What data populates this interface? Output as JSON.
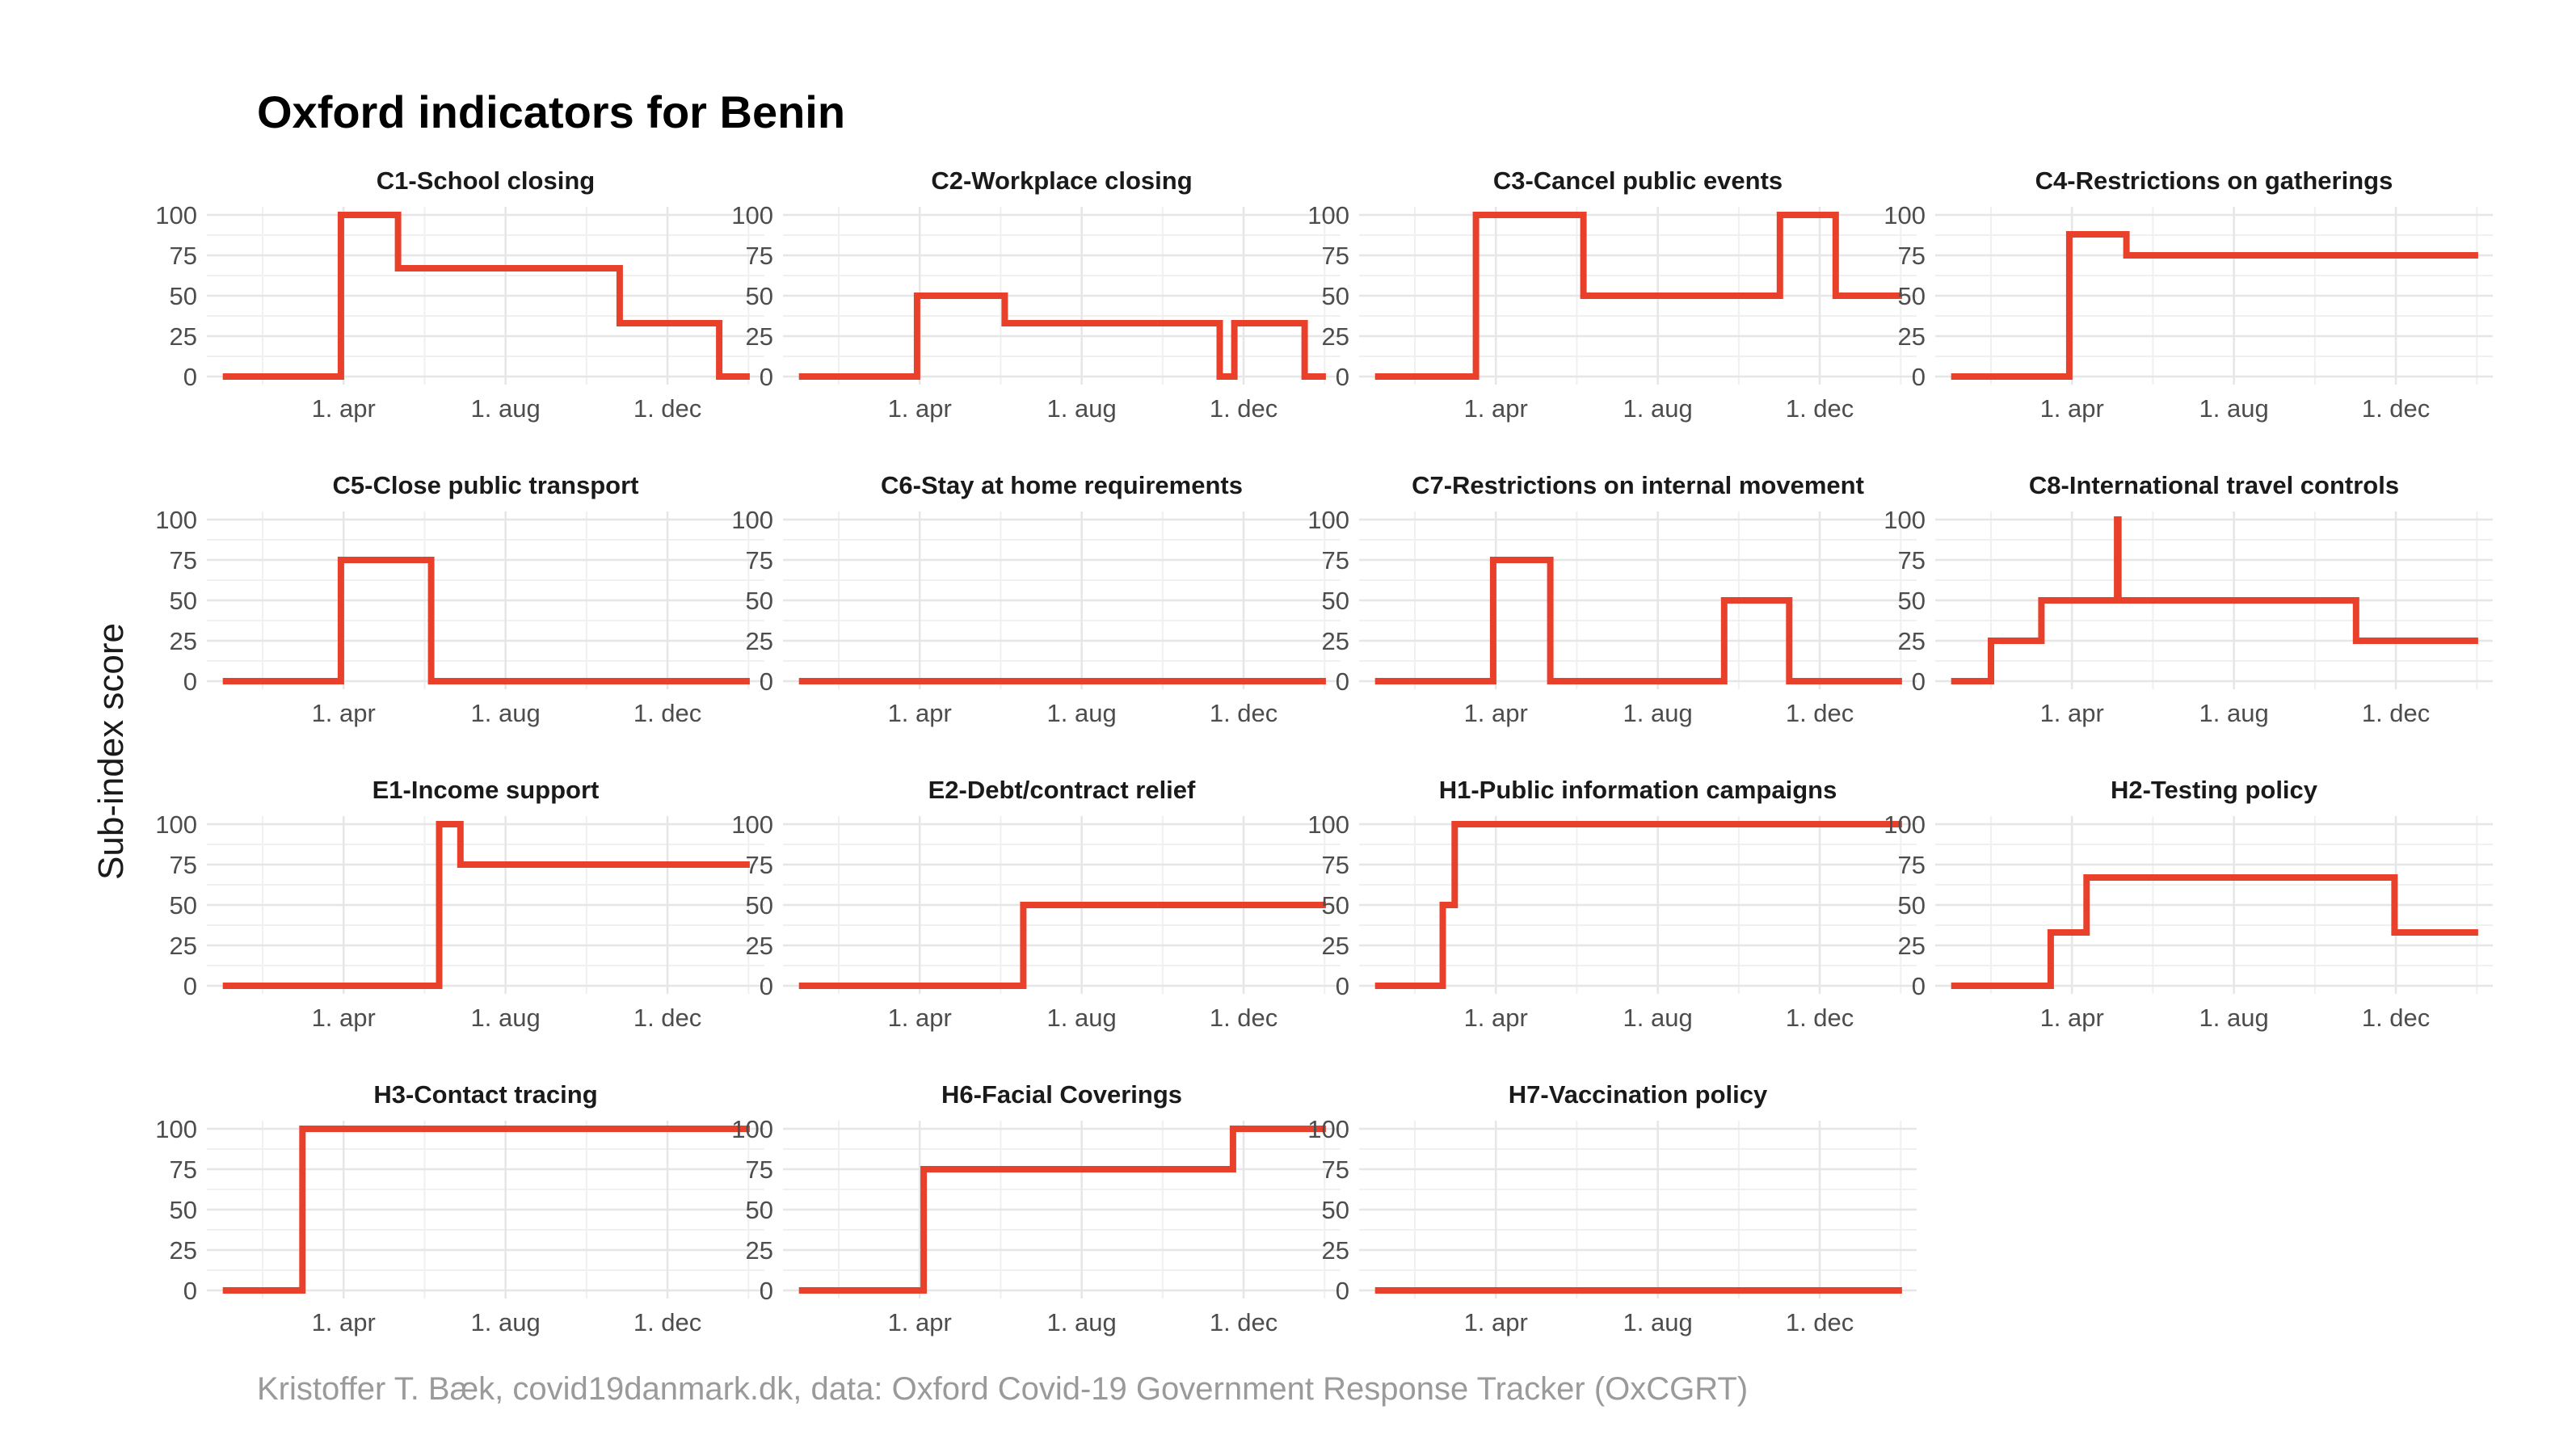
{
  "title": "Oxford indicators for Benin",
  "ylabel": "Sub-index score",
  "caption": "Kristoffer T. Bæk, covid19danmark.dk, data: Oxford Covid-19 Government Response Tracker (OxCGRT)",
  "colors": {
    "line": "#e8402a",
    "grid": "#e6e6e6",
    "tick": "#4d4d4d"
  },
  "chart_data": [
    {
      "type": "line",
      "title": "C1-School closing",
      "x_ticks": [
        "1. apr",
        "1. aug",
        "1. dec"
      ],
      "y_ticks": [
        "0",
        "25",
        "50",
        "75",
        "100"
      ],
      "ylim": [
        0,
        100
      ],
      "x": [
        "2020-01-01",
        "2020-03-30",
        "2020-03-30",
        "2020-05-12",
        "2020-05-12",
        "2020-10-26",
        "2020-10-26",
        "2021-01-09",
        "2021-01-09",
        "2021-02-01"
      ],
      "y": [
        0,
        0,
        100,
        100,
        67,
        67,
        33,
        33,
        0,
        0
      ]
    },
    {
      "type": "line",
      "title": "C2-Workplace closing",
      "x_ticks": [
        "1. apr",
        "1. aug",
        "1. dec"
      ],
      "y_ticks": [
        "0",
        "25",
        "50",
        "75",
        "100"
      ],
      "ylim": [
        0,
        100
      ],
      "x": [
        "2020-01-01",
        "2020-03-30",
        "2020-03-30",
        "2020-06-04",
        "2020-06-04",
        "2020-11-13",
        "2020-11-13",
        "2020-11-24",
        "2020-11-24",
        "2021-01-16",
        "2021-01-16",
        "2021-02-01"
      ],
      "y": [
        0,
        0,
        50,
        50,
        33,
        33,
        0,
        0,
        33,
        33,
        0,
        0
      ]
    },
    {
      "type": "line",
      "title": "C3-Cancel public events",
      "x_ticks": [
        "1. apr",
        "1. aug",
        "1. dec"
      ],
      "y_ticks": [
        "0",
        "25",
        "50",
        "75",
        "100"
      ],
      "ylim": [
        0,
        100
      ],
      "x": [
        "2020-01-01",
        "2020-03-17",
        "2020-03-17",
        "2020-06-06",
        "2020-06-06",
        "2020-11-01",
        "2020-11-01",
        "2020-12-13",
        "2020-12-13",
        "2021-02-01"
      ],
      "y": [
        0,
        0,
        100,
        100,
        50,
        50,
        100,
        100,
        50,
        50
      ]
    },
    {
      "type": "line",
      "title": "C4-Restrictions on gatherings",
      "x_ticks": [
        "1. apr",
        "1. aug",
        "1. dec"
      ],
      "y_ticks": [
        "0",
        "25",
        "50",
        "75",
        "100"
      ],
      "ylim": [
        0,
        100
      ],
      "x": [
        "2020-01-01",
        "2020-03-30",
        "2020-03-30",
        "2020-05-12",
        "2020-05-12",
        "2021-02-01"
      ],
      "y": [
        0,
        0,
        88,
        88,
        75,
        75
      ]
    },
    {
      "type": "line",
      "title": "C5-Close public transport",
      "x_ticks": [
        "1. apr",
        "1. aug",
        "1. dec"
      ],
      "y_ticks": [
        "0",
        "25",
        "50",
        "75",
        "100"
      ],
      "ylim": [
        0,
        100
      ],
      "x": [
        "2020-01-01",
        "2020-03-30",
        "2020-03-30",
        "2020-06-06",
        "2020-06-06",
        "2021-02-01"
      ],
      "y": [
        0,
        0,
        75,
        75,
        0,
        0
      ]
    },
    {
      "type": "line",
      "title": "C6-Stay at home requirements",
      "x_ticks": [
        "1. apr",
        "1. aug",
        "1. dec"
      ],
      "y_ticks": [
        "0",
        "25",
        "50",
        "75",
        "100"
      ],
      "ylim": [
        0,
        100
      ],
      "x": [
        "2020-01-01",
        "2021-02-01"
      ],
      "y": [
        0,
        0
      ]
    },
    {
      "type": "line",
      "title": "C7-Restrictions on internal movement",
      "x_ticks": [
        "1. apr",
        "1. aug",
        "1. dec"
      ],
      "y_ticks": [
        "0",
        "25",
        "50",
        "75",
        "100"
      ],
      "ylim": [
        0,
        100
      ],
      "x": [
        "2020-01-01",
        "2020-03-30",
        "2020-03-30",
        "2020-05-12",
        "2020-05-12",
        "2020-09-20",
        "2020-09-20",
        "2020-11-08",
        "2020-11-08",
        "2021-02-01"
      ],
      "y": [
        0,
        0,
        75,
        75,
        0,
        0,
        50,
        50,
        0,
        0
      ]
    },
    {
      "type": "line",
      "title": "C8-International travel controls",
      "x_ticks": [
        "1. apr",
        "1. aug",
        "1. dec"
      ],
      "y_ticks": [
        "0",
        "25",
        "50",
        "75",
        "100"
      ],
      "ylim": [
        0,
        100
      ],
      "x": [
        "2020-01-01",
        "2020-01-31",
        "2020-01-31",
        "2020-03-09",
        "2020-03-09",
        "2020-05-05",
        "2020-05-05",
        "2020-05-06",
        "2020-05-06",
        "2020-11-01",
        "2020-11-01",
        "2021-02-01"
      ],
      "y": [
        0,
        0,
        25,
        25,
        50,
        50,
        100,
        100,
        50,
        50,
        25,
        25
      ]
    },
    {
      "type": "line",
      "title": "E1-Income support",
      "x_ticks": [
        "1. apr",
        "1. aug",
        "1. dec"
      ],
      "y_ticks": [
        "0",
        "25",
        "50",
        "75",
        "100"
      ],
      "ylim": [
        0,
        100
      ],
      "x": [
        "2020-01-01",
        "2020-06-12",
        "2020-06-12",
        "2020-06-28",
        "2020-06-28",
        "2021-02-01"
      ],
      "y": [
        0,
        0,
        100,
        100,
        75,
        75
      ]
    },
    {
      "type": "line",
      "title": "E2-Debt/contract relief",
      "x_ticks": [
        "1. apr",
        "1. aug",
        "1. dec"
      ],
      "y_ticks": [
        "0",
        "25",
        "50",
        "75",
        "100"
      ],
      "ylim": [
        0,
        100
      ],
      "x": [
        "2020-01-01",
        "2020-06-18",
        "2020-06-18",
        "2021-02-01"
      ],
      "y": [
        0,
        0,
        50,
        50
      ]
    },
    {
      "type": "line",
      "title": "H1-Public information campaigns",
      "x_ticks": [
        "1. apr",
        "1. aug",
        "1. dec"
      ],
      "y_ticks": [
        "0",
        "25",
        "50",
        "75",
        "100"
      ],
      "ylim": [
        0,
        100
      ],
      "x": [
        "2020-01-01",
        "2020-02-21",
        "2020-02-21",
        "2020-03-01",
        "2020-03-01",
        "2021-02-01"
      ],
      "y": [
        0,
        0,
        50,
        50,
        100,
        100
      ]
    },
    {
      "type": "line",
      "title": "H2-Testing policy",
      "x_ticks": [
        "1. apr",
        "1. aug",
        "1. dec"
      ],
      "y_ticks": [
        "0",
        "25",
        "50",
        "75",
        "100"
      ],
      "ylim": [
        0,
        100
      ],
      "x": [
        "2020-01-01",
        "2020-03-16",
        "2020-03-16",
        "2020-04-12",
        "2020-04-12",
        "2020-11-30",
        "2020-11-30",
        "2021-02-01"
      ],
      "y": [
        0,
        0,
        33,
        33,
        67,
        67,
        33,
        33
      ]
    },
    {
      "type": "line",
      "title": "H3-Contact tracing",
      "x_ticks": [
        "1. apr",
        "1. aug",
        "1. dec"
      ],
      "y_ticks": [
        "0",
        "25",
        "50",
        "75",
        "100"
      ],
      "ylim": [
        0,
        100
      ],
      "x": [
        "2020-01-01",
        "2020-03-01",
        "2020-03-01",
        "2021-02-01"
      ],
      "y": [
        0,
        0,
        100,
        100
      ]
    },
    {
      "type": "line",
      "title": "H6-Facial Coverings",
      "x_ticks": [
        "1. apr",
        "1. aug",
        "1. dec"
      ],
      "y_ticks": [
        "0",
        "25",
        "50",
        "75",
        "100"
      ],
      "ylim": [
        0,
        100
      ],
      "x": [
        "2020-01-01",
        "2020-04-04",
        "2020-04-04",
        "2020-11-23",
        "2020-11-23",
        "2021-02-01"
      ],
      "y": [
        0,
        0,
        75,
        75,
        100,
        100
      ]
    },
    {
      "type": "line",
      "title": "H7-Vaccination policy",
      "x_ticks": [
        "1. apr",
        "1. aug",
        "1. dec"
      ],
      "y_ticks": [
        "0",
        "25",
        "50",
        "75",
        "100"
      ],
      "ylim": [
        0,
        100
      ],
      "x": [
        "2020-01-01",
        "2021-02-01"
      ],
      "y": [
        0,
        0
      ]
    }
  ]
}
